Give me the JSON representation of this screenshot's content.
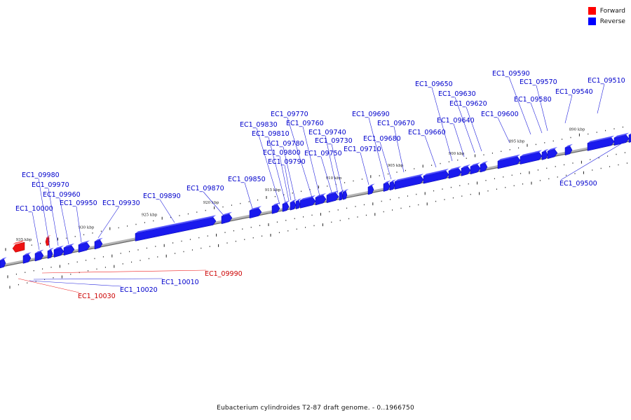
{
  "legend": [
    {
      "label": "Forward",
      "color": "#ff0000"
    },
    {
      "label": "Reverse",
      "color": "#0000ff"
    }
  ],
  "caption": "Eubacterium cylindroides T2-87 draft genome. - 0..1966750",
  "colors": {
    "forward": "#ee1111",
    "reverse": "#1a1aee",
    "reverse_dark": "#0000aa",
    "axis": "#777777",
    "reverse_label": "#0000cc",
    "forward_label": "#cc0000"
  },
  "axis_labels": [
    "935 kbp",
    "930 kbp",
    "925 kbp",
    "920 kbp",
    "915 kbp",
    "910 kbp",
    "905 kbp",
    "900 kbp",
    "895 kbp",
    "890 kbp"
  ],
  "genes": [
    {
      "label": "EC1_09510",
      "strand": "reverse"
    },
    {
      "label": "EC1_09540",
      "strand": "reverse"
    },
    {
      "label": "EC1_09570",
      "strand": "reverse"
    },
    {
      "label": "EC1_09580",
      "strand": "reverse"
    },
    {
      "label": "EC1_09590",
      "strand": "reverse"
    },
    {
      "label": "EC1_09600",
      "strand": "reverse"
    },
    {
      "label": "EC1_09620",
      "strand": "reverse"
    },
    {
      "label": "EC1_09630",
      "strand": "reverse"
    },
    {
      "label": "EC1_09640",
      "strand": "reverse"
    },
    {
      "label": "EC1_09650",
      "strand": "reverse"
    },
    {
      "label": "EC1_09660",
      "strand": "reverse"
    },
    {
      "label": "EC1_09670",
      "strand": "reverse"
    },
    {
      "label": "EC1_09680",
      "strand": "reverse"
    },
    {
      "label": "EC1_09690",
      "strand": "reverse"
    },
    {
      "label": "EC1_09710",
      "strand": "reverse"
    },
    {
      "label": "EC1_09730",
      "strand": "reverse"
    },
    {
      "label": "EC1_09740",
      "strand": "reverse"
    },
    {
      "label": "EC1_09750",
      "strand": "reverse"
    },
    {
      "label": "EC1_09760",
      "strand": "reverse"
    },
    {
      "label": "EC1_09770",
      "strand": "reverse"
    },
    {
      "label": "EC1_09780",
      "strand": "reverse"
    },
    {
      "label": "EC1_09790",
      "strand": "reverse"
    },
    {
      "label": "EC1_09800",
      "strand": "reverse"
    },
    {
      "label": "EC1_09810",
      "strand": "reverse"
    },
    {
      "label": "EC1_09830",
      "strand": "reverse"
    },
    {
      "label": "EC1_09850",
      "strand": "reverse"
    },
    {
      "label": "EC1_09870",
      "strand": "reverse"
    },
    {
      "label": "EC1_09890",
      "strand": "reverse"
    },
    {
      "label": "EC1_09930",
      "strand": "reverse"
    },
    {
      "label": "EC1_09950",
      "strand": "reverse"
    },
    {
      "label": "EC1_09960",
      "strand": "reverse"
    },
    {
      "label": "EC1_09970",
      "strand": "reverse"
    },
    {
      "label": "EC1_09980",
      "strand": "reverse"
    },
    {
      "label": "EC1_10000",
      "strand": "reverse"
    },
    {
      "label": "EC1_09500",
      "strand": "reverse"
    },
    {
      "label": "EC1_09990",
      "strand": "forward"
    },
    {
      "label": "EC1_10010",
      "strand": "reverse"
    },
    {
      "label": "EC1_10020",
      "strand": "reverse"
    },
    {
      "label": "EC1_10030",
      "strand": "forward"
    }
  ]
}
